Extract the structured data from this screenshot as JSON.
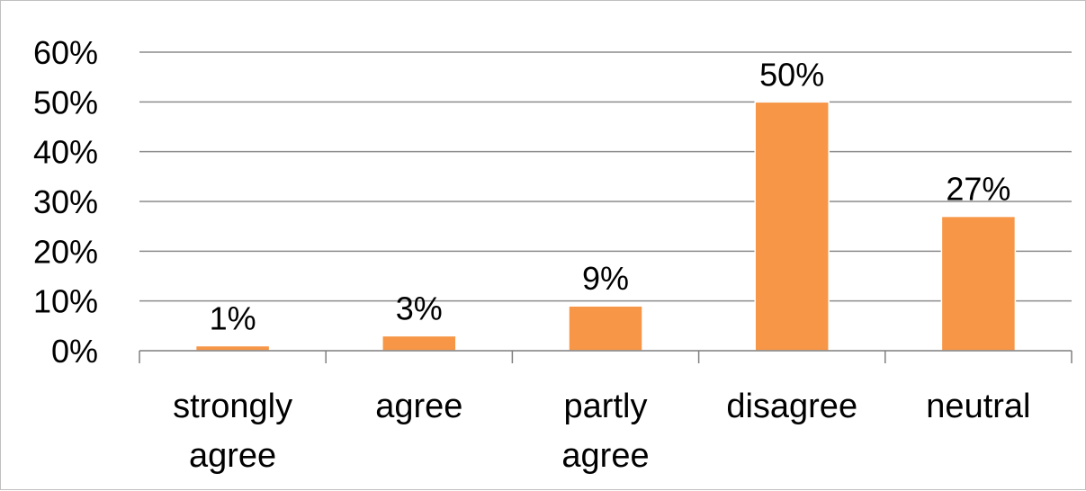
{
  "chart_data": {
    "type": "bar",
    "categories": [
      [
        "strongly",
        "agree"
      ],
      [
        "agree"
      ],
      [
        "partly",
        "agree"
      ],
      [
        "disagree"
      ],
      [
        "neutral"
      ]
    ],
    "values": [
      1,
      3,
      9,
      50,
      27
    ],
    "data_labels": [
      "1%",
      "3%",
      "9%",
      "50%",
      "27%"
    ],
    "y_ticks": [
      "0%",
      "10%",
      "20%",
      "30%",
      "40%",
      "50%",
      "60%"
    ],
    "ylim": [
      0,
      60
    ],
    "grid": true,
    "bar_color": "#f79646"
  }
}
